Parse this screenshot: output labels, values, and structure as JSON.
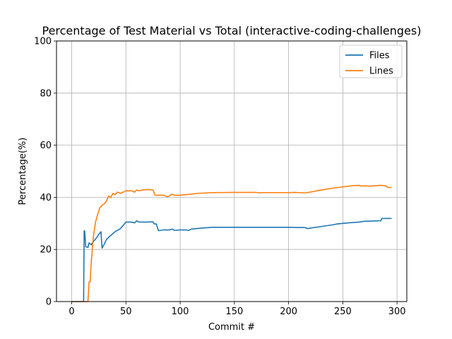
{
  "chart_data": {
    "type": "line",
    "title": "Percentage of Test Material vs Total (interactive-coding-challenges)",
    "xlabel": "Commit #",
    "ylabel": "Percentage(%)",
    "xlim": [
      -14,
      309
    ],
    "ylim": [
      0,
      100
    ],
    "xticks": [
      0,
      50,
      100,
      150,
      200,
      250,
      300
    ],
    "yticks": [
      0,
      20,
      40,
      60,
      80,
      100
    ],
    "grid": true,
    "legend_position": "top-right",
    "series": [
      {
        "name": "Files",
        "color": "#1f77b4",
        "points": [
          [
            0,
            0
          ],
          [
            11,
            0
          ],
          [
            11.5,
            27.2
          ],
          [
            12,
            27
          ],
          [
            13,
            21
          ],
          [
            15,
            20.8
          ],
          [
            16,
            22.5
          ],
          [
            18,
            21.8
          ],
          [
            19,
            22.5
          ],
          [
            21,
            23.5
          ],
          [
            23,
            24.5
          ],
          [
            25,
            25.8
          ],
          [
            27,
            26.8
          ],
          [
            28,
            20.5
          ],
          [
            30,
            22
          ],
          [
            32,
            23.8
          ],
          [
            35,
            25
          ],
          [
            40,
            26.8
          ],
          [
            45,
            28
          ],
          [
            50,
            30.5
          ],
          [
            55,
            30.5
          ],
          [
            58,
            30.2
          ],
          [
            60,
            31
          ],
          [
            62,
            30.5
          ],
          [
            70,
            30.5
          ],
          [
            75,
            30.6
          ],
          [
            76,
            29.8
          ],
          [
            78,
            29.8
          ],
          [
            80,
            27.2
          ],
          [
            85,
            27.5
          ],
          [
            90,
            27.5
          ],
          [
            93,
            27.8
          ],
          [
            95,
            27.3
          ],
          [
            100,
            27.5
          ],
          [
            105,
            27.5
          ],
          [
            108,
            27.3
          ],
          [
            110,
            27.8
          ],
          [
            115,
            28
          ],
          [
            120,
            28.2
          ],
          [
            130,
            28.5
          ],
          [
            150,
            28.5
          ],
          [
            175,
            28.5
          ],
          [
            200,
            28.5
          ],
          [
            210,
            28.4
          ],
          [
            215,
            28.4
          ],
          [
            218,
            28
          ],
          [
            220,
            28.2
          ],
          [
            230,
            28.8
          ],
          [
            240,
            29.4
          ],
          [
            245,
            29.8
          ],
          [
            255,
            30.2
          ],
          [
            265,
            30.5
          ],
          [
            270,
            30.8
          ],
          [
            285,
            31
          ],
          [
            286,
            31.9
          ],
          [
            290,
            31.9
          ],
          [
            295,
            31.9
          ]
        ]
      },
      {
        "name": "Lines",
        "color": "#ff7f0e",
        "points": [
          [
            0,
            0
          ],
          [
            15,
            0
          ],
          [
            16,
            7.5
          ],
          [
            17,
            7.5
          ],
          [
            18,
            15
          ],
          [
            20,
            25
          ],
          [
            22,
            30.5
          ],
          [
            24,
            33.5
          ],
          [
            26,
            36
          ],
          [
            28,
            37
          ],
          [
            30,
            37.5
          ],
          [
            32,
            38.5
          ],
          [
            34,
            40.5
          ],
          [
            36,
            40
          ],
          [
            38,
            41.5
          ],
          [
            40,
            41
          ],
          [
            42,
            42
          ],
          [
            45,
            41.5
          ],
          [
            50,
            42.5
          ],
          [
            55,
            42.5
          ],
          [
            58,
            42
          ],
          [
            60,
            42.8
          ],
          [
            62,
            42.5
          ],
          [
            65,
            42.8
          ],
          [
            70,
            43
          ],
          [
            75,
            42.8
          ],
          [
            77,
            40.8
          ],
          [
            80,
            40.8
          ],
          [
            85,
            40.8
          ],
          [
            88,
            40.2
          ],
          [
            90,
            40.5
          ],
          [
            92,
            41.2
          ],
          [
            95,
            40.8
          ],
          [
            100,
            40.8
          ],
          [
            105,
            41
          ],
          [
            110,
            41.2
          ],
          [
            115,
            41.5
          ],
          [
            120,
            41.6
          ],
          [
            130,
            41.8
          ],
          [
            150,
            41.9
          ],
          [
            170,
            41.9
          ],
          [
            173,
            41.7
          ],
          [
            175,
            41.8
          ],
          [
            200,
            41.8
          ],
          [
            205,
            41.9
          ],
          [
            210,
            41.8
          ],
          [
            215,
            41.7
          ],
          [
            220,
            42
          ],
          [
            230,
            42.8
          ],
          [
            240,
            43.5
          ],
          [
            250,
            44
          ],
          [
            260,
            44.5
          ],
          [
            265,
            44.6
          ],
          [
            267,
            44.3
          ],
          [
            270,
            44.4
          ],
          [
            275,
            44.3
          ],
          [
            285,
            44.6
          ],
          [
            290,
            44.4
          ],
          [
            291,
            43.8
          ],
          [
            295,
            43.8
          ]
        ]
      }
    ]
  }
}
